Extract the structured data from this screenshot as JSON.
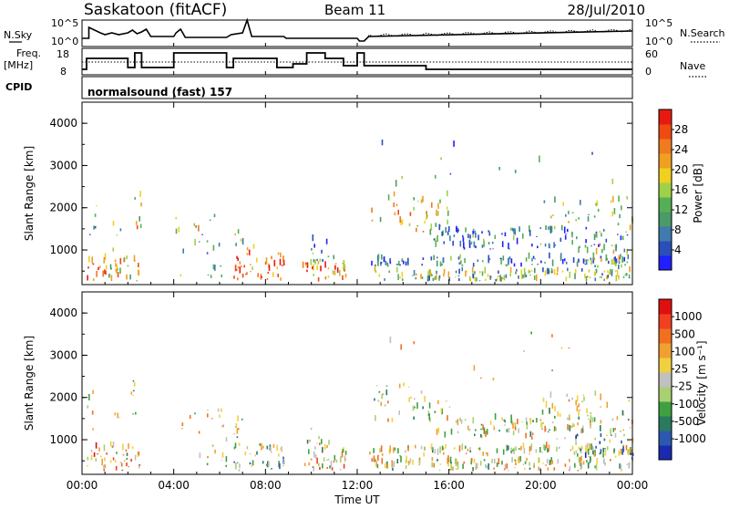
{
  "header": {
    "station": "Saskatoon (fitACF)",
    "beam": "Beam 11",
    "date": "28/Jul/2010"
  },
  "top_panels": {
    "nsky_label": "N.Sky",
    "nsky_ticks": [
      "10^5",
      "10^0"
    ],
    "nsearch_label": "N.Search",
    "nsearch_ticks": [
      "10^5",
      "10^0"
    ],
    "freq_label": "Freq.",
    "freq_unit": "[MHz]",
    "freq_ticks": [
      "18",
      "8"
    ],
    "nave_label": "Nave",
    "nave_ticks": [
      "60",
      "0"
    ],
    "cpid_label": "CPID",
    "cpid_text": "normalsound (fast) 157"
  },
  "colors": {
    "power": [
      "#1f1fff",
      "#2b4fb8",
      "#3f7ab0",
      "#4a9a6a",
      "#55b055",
      "#9fd04a",
      "#f0d020",
      "#f0a020",
      "#f07a20",
      "#f04a10",
      "#e81a10"
    ],
    "velocity": [
      "#1a2ab0",
      "#2c58b0",
      "#2a7a60",
      "#40a040",
      "#a8d070",
      "#c0c0c0",
      "#f0d040",
      "#f0a030",
      "#f07020",
      "#f04020",
      "#e01010"
    ]
  },
  "chart_data": [
    {
      "type": "heatmap",
      "title": "Power",
      "ylabel": "Slant Range [km]",
      "xlabel": "",
      "x_ticks": [
        "00:00",
        "04:00",
        "08:00",
        "12:00",
        "16:00",
        "20:00",
        "00:00"
      ],
      "y_ticks": [
        "1000",
        "2000",
        "3000",
        "4000"
      ],
      "ylim": [
        180,
        4500
      ],
      "xlim_hours": [
        0,
        24
      ],
      "colorbar_label": "Power [dB]",
      "colorbar_ticks": [
        "4",
        "8",
        "12",
        "16",
        "20",
        "24",
        "28"
      ],
      "colorbar_range": [
        0,
        32
      ]
    },
    {
      "type": "heatmap",
      "title": "Velocity",
      "ylabel": "Slant Range [km]",
      "xlabel": "Time UT",
      "x_ticks": [
        "00:00",
        "04:00",
        "08:00",
        "12:00",
        "16:00",
        "20:00",
        "00:00"
      ],
      "y_ticks": [
        "1000",
        "2000",
        "3000",
        "4000"
      ],
      "ylim": [
        180,
        4500
      ],
      "xlim_hours": [
        0,
        24
      ],
      "colorbar_label": "Velocity [m s⁻¹]",
      "colorbar_ticks": [
        "1000",
        "500",
        "100",
        "25",
        "-25",
        "-100",
        "-500",
        "-1000"
      ]
    }
  ]
}
